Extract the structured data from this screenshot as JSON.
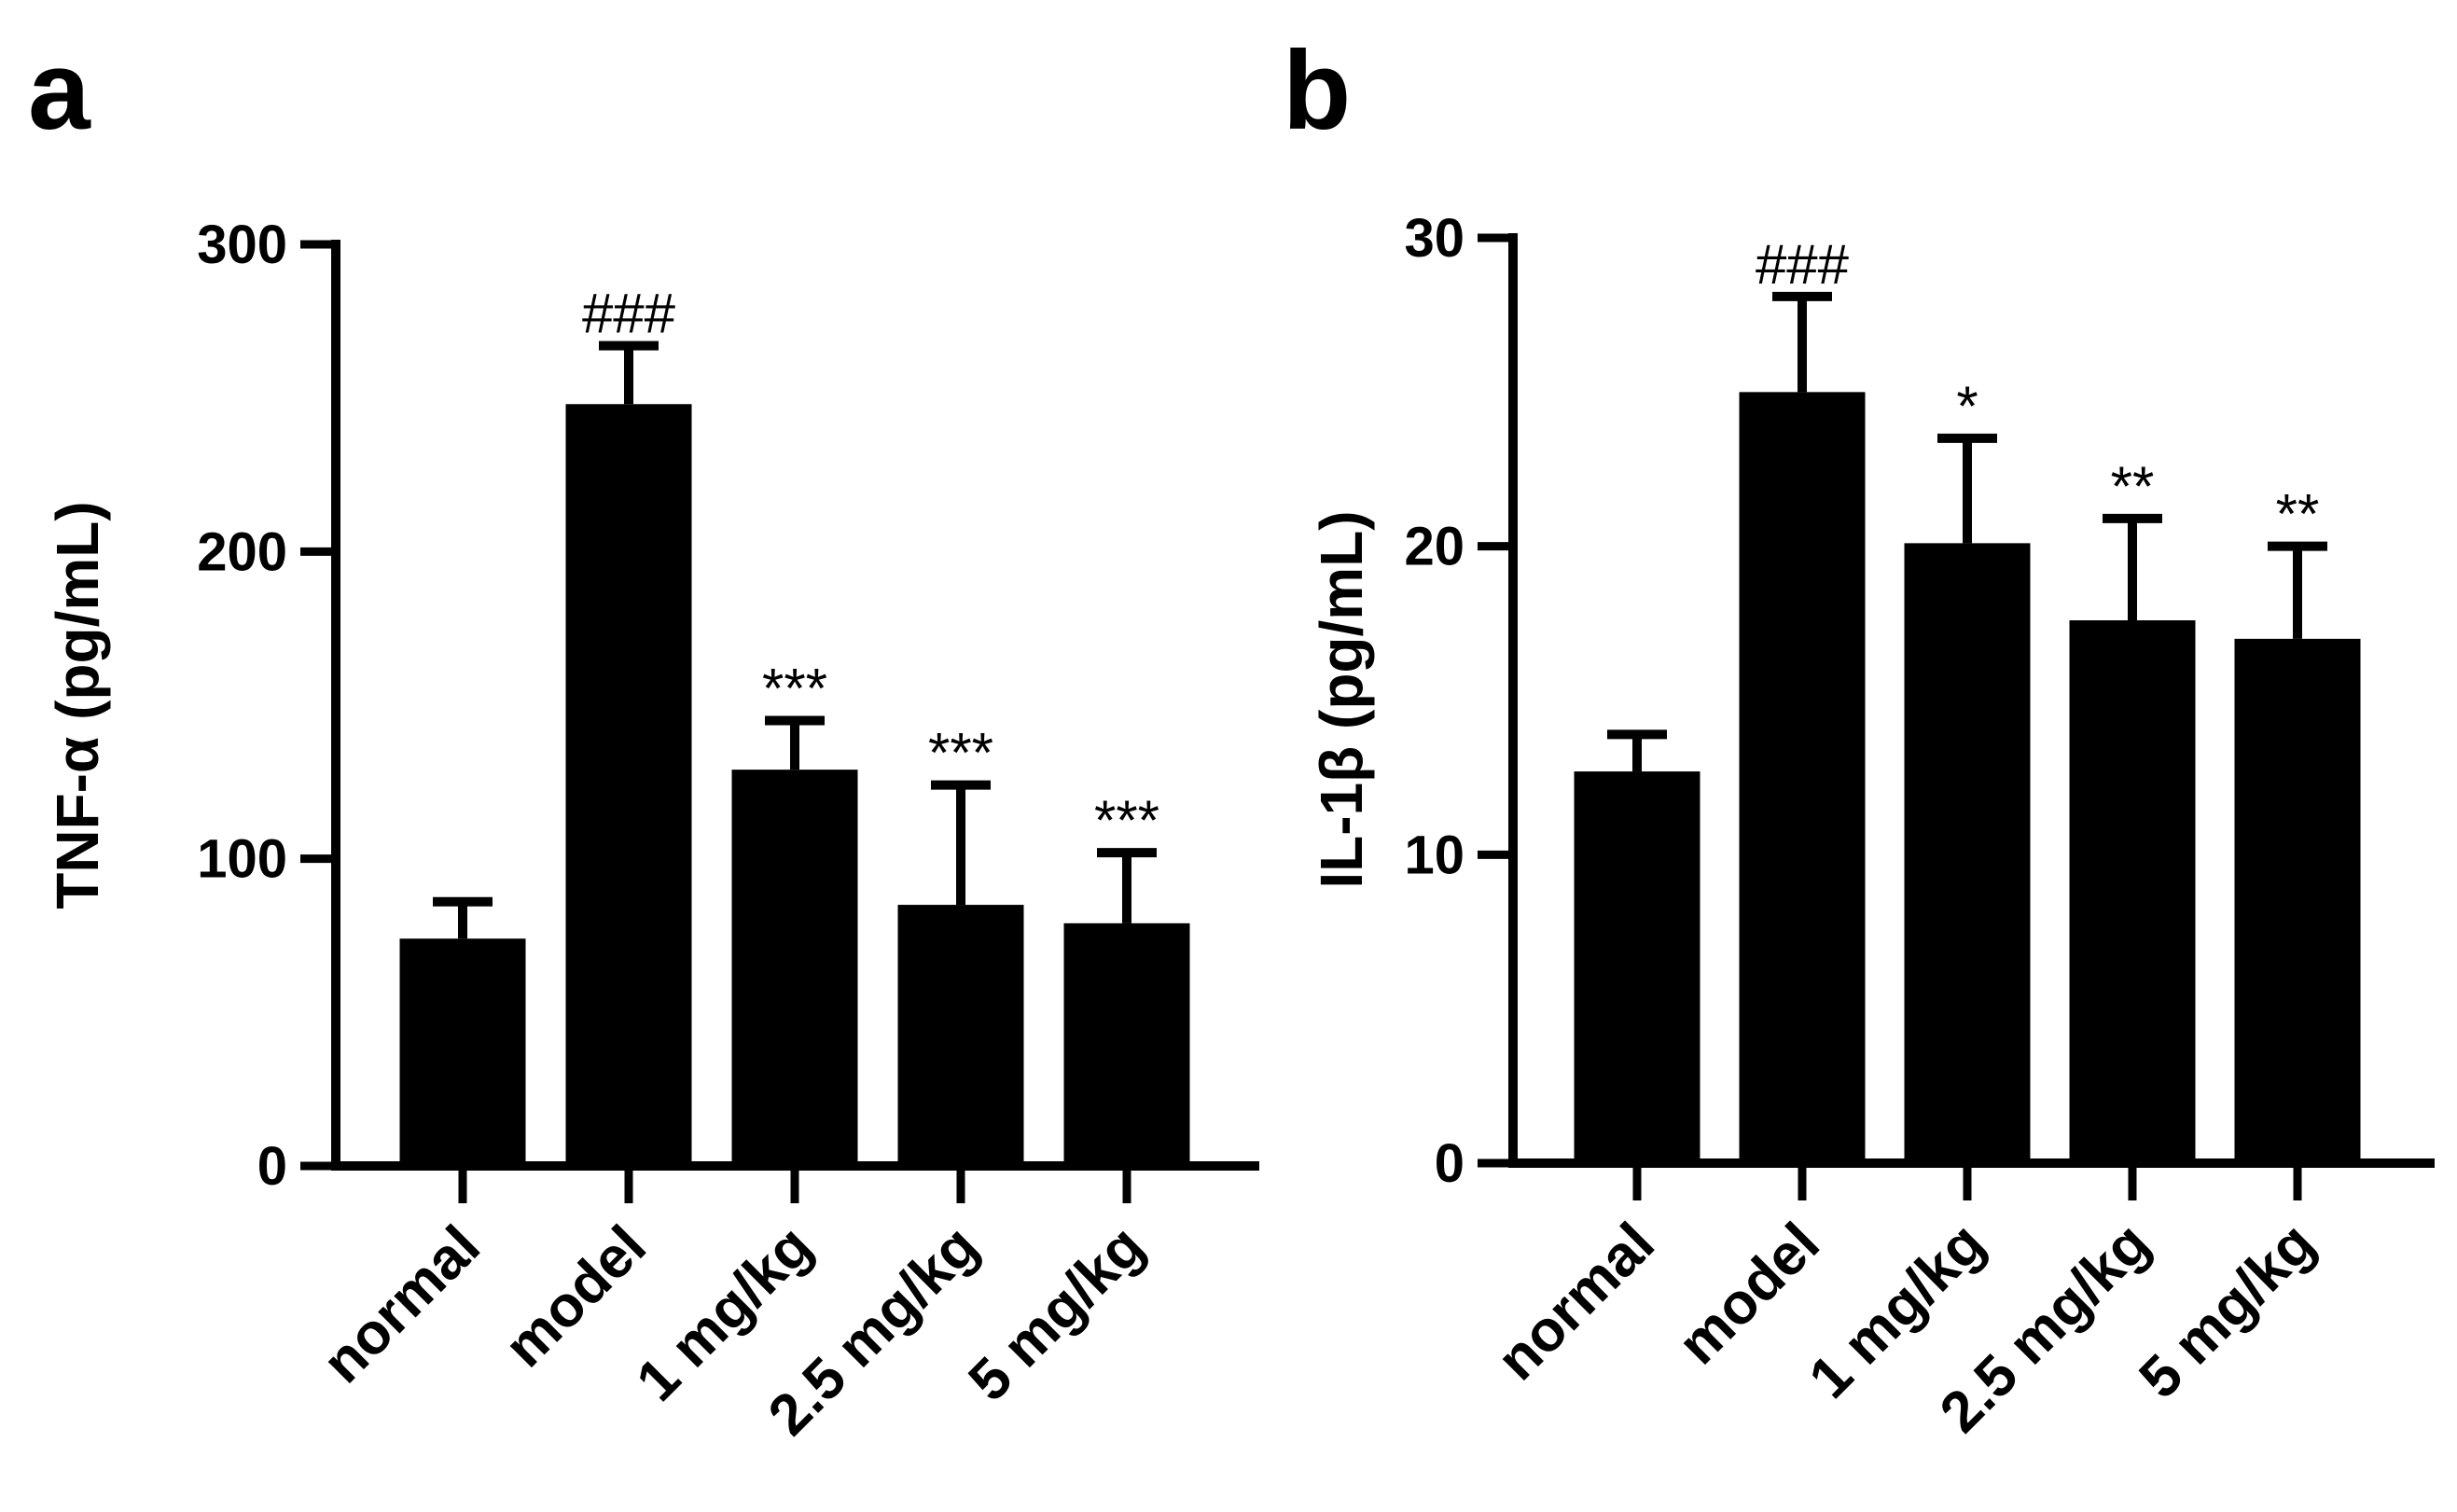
{
  "chart_data": [
    {
      "panel": "a",
      "type": "bar",
      "categories": [
        "normal",
        "model",
        "1 mg/kg",
        "2.5 mg/kg",
        "5 mg/kg"
      ],
      "values": [
        74,
        248,
        129,
        85,
        79
      ],
      "errors": [
        12,
        19,
        16,
        39,
        23
      ],
      "annotations": [
        "",
        "###",
        "***",
        "***",
        "***"
      ],
      "ylabel": "TNF-α (pg/mL)",
      "ylim": [
        0,
        300
      ],
      "yticks": [
        0,
        100,
        200,
        300
      ],
      "ytick_labels": [
        "0",
        "100",
        "200",
        "300"
      ]
    },
    {
      "panel": "b",
      "type": "bar",
      "categories": [
        "normal",
        "model",
        "1 mg/kg",
        "2.5 mg/kg",
        "5 mg/kg"
      ],
      "values": [
        12.7,
        25.0,
        20.1,
        17.6,
        17.0
      ],
      "errors": [
        1.2,
        3.1,
        3.4,
        3.3,
        3.0
      ],
      "annotations": [
        "",
        "###",
        "*",
        "**",
        "**"
      ],
      "ylabel": "IL-1β (pg/mL)",
      "ylim": [
        0,
        30
      ],
      "yticks": [
        0,
        10,
        20,
        30
      ],
      "ytick_labels": [
        "0",
        "10",
        "20",
        "30"
      ]
    }
  ]
}
